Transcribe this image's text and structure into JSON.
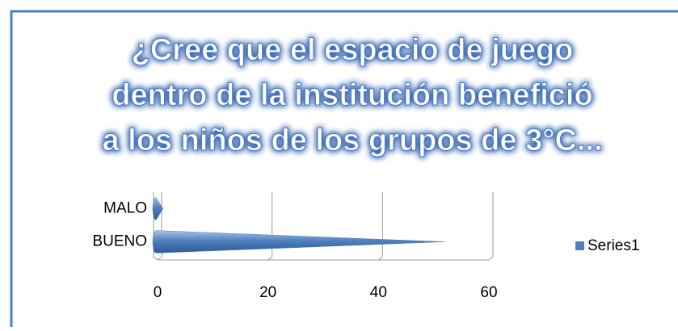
{
  "chart_data": {
    "type": "bar",
    "orientation": "horizontal",
    "title": [
      "¿Cree que el espacio de juego",
      "dentro de la institución benefició",
      "a los niños de los grupos de  3°C..."
    ],
    "categories": [
      "MALO",
      "BUENO"
    ],
    "series": [
      {
        "name": "Series1",
        "color": "#4f81bd",
        "values": [
          1,
          52
        ]
      }
    ],
    "xlim": [
      0,
      60
    ],
    "xticks": [
      0,
      20,
      40,
      60
    ],
    "grid": true,
    "legend": "right"
  }
}
